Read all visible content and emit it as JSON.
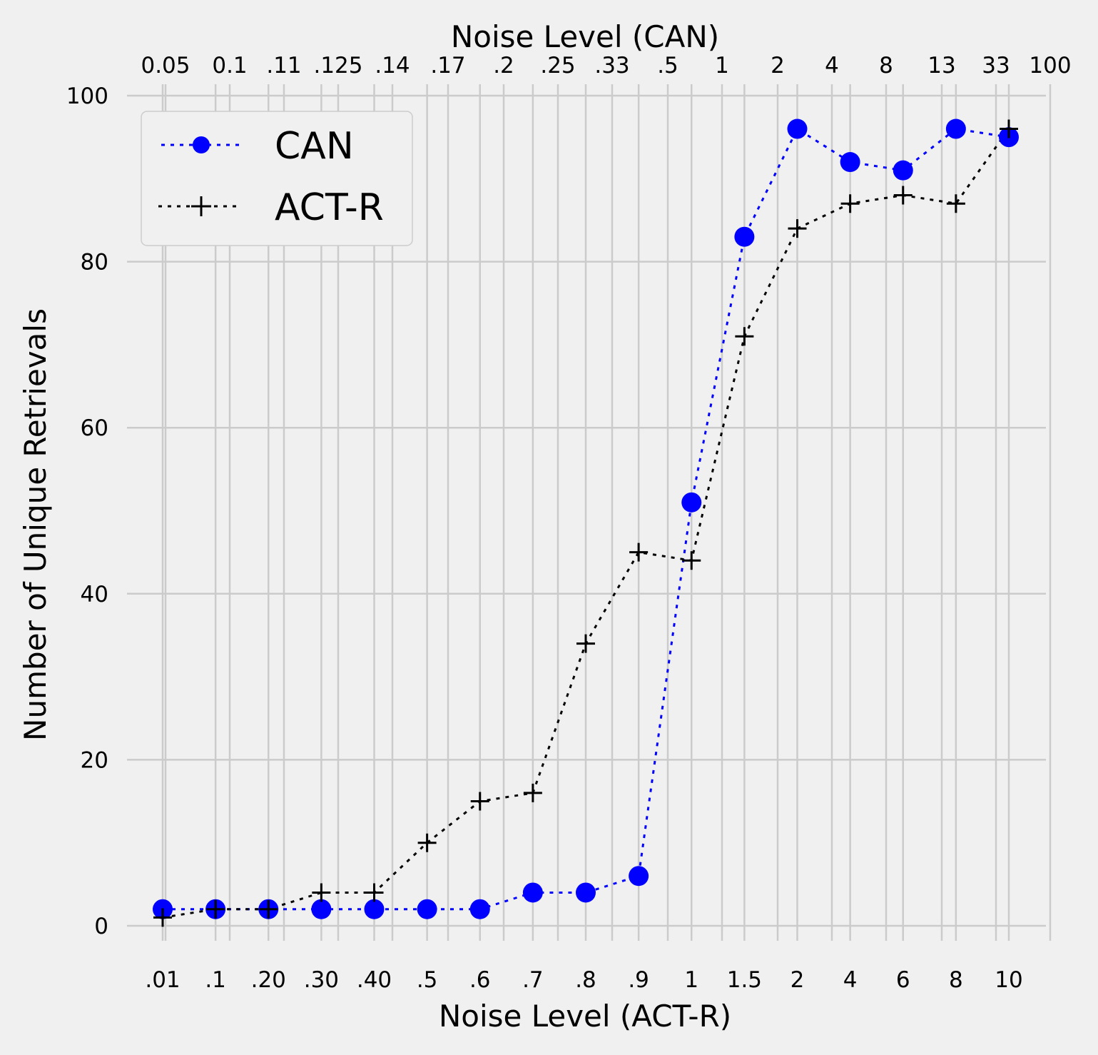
{
  "chart_data": {
    "type": "line",
    "xlabel": "Noise Level (ACT-R)",
    "top_xlabel": "Noise Level (CAN)",
    "ylabel": "Number of Unique Retrievals",
    "ylim": [
      -3,
      100
    ],
    "yticks": [
      0,
      20,
      40,
      60,
      80,
      100
    ],
    "grid": true,
    "legend_position": "top-left",
    "categories": [
      ".01",
      ".1",
      ".20",
      ".30",
      ".40",
      ".5",
      ".6",
      ".7",
      ".8",
      ".9",
      "1",
      "1.5",
      "2",
      "4",
      "6",
      "8",
      "10"
    ],
    "top_ticks": [
      "0.05",
      "0.1",
      ".11",
      ".125",
      ".14",
      ".17",
      ".2",
      ".25",
      ".33",
      ".5",
      "1",
      "2",
      "4",
      "8",
      "13",
      "33",
      "100"
    ],
    "series": [
      {
        "name": "CAN",
        "color": "#0000ff",
        "marker": "circle",
        "line": "dotted",
        "values": [
          2,
          2,
          2,
          2,
          2,
          2,
          2,
          4,
          4,
          6,
          51,
          83,
          96,
          92,
          91,
          96,
          95
        ]
      },
      {
        "name": "ACT-R",
        "color": "#000000",
        "marker": "plus",
        "line": "dotted",
        "values": [
          1,
          2,
          2,
          4,
          4,
          10,
          15,
          16,
          34,
          45,
          44,
          71,
          84,
          87,
          88,
          87,
          96
        ]
      }
    ]
  }
}
